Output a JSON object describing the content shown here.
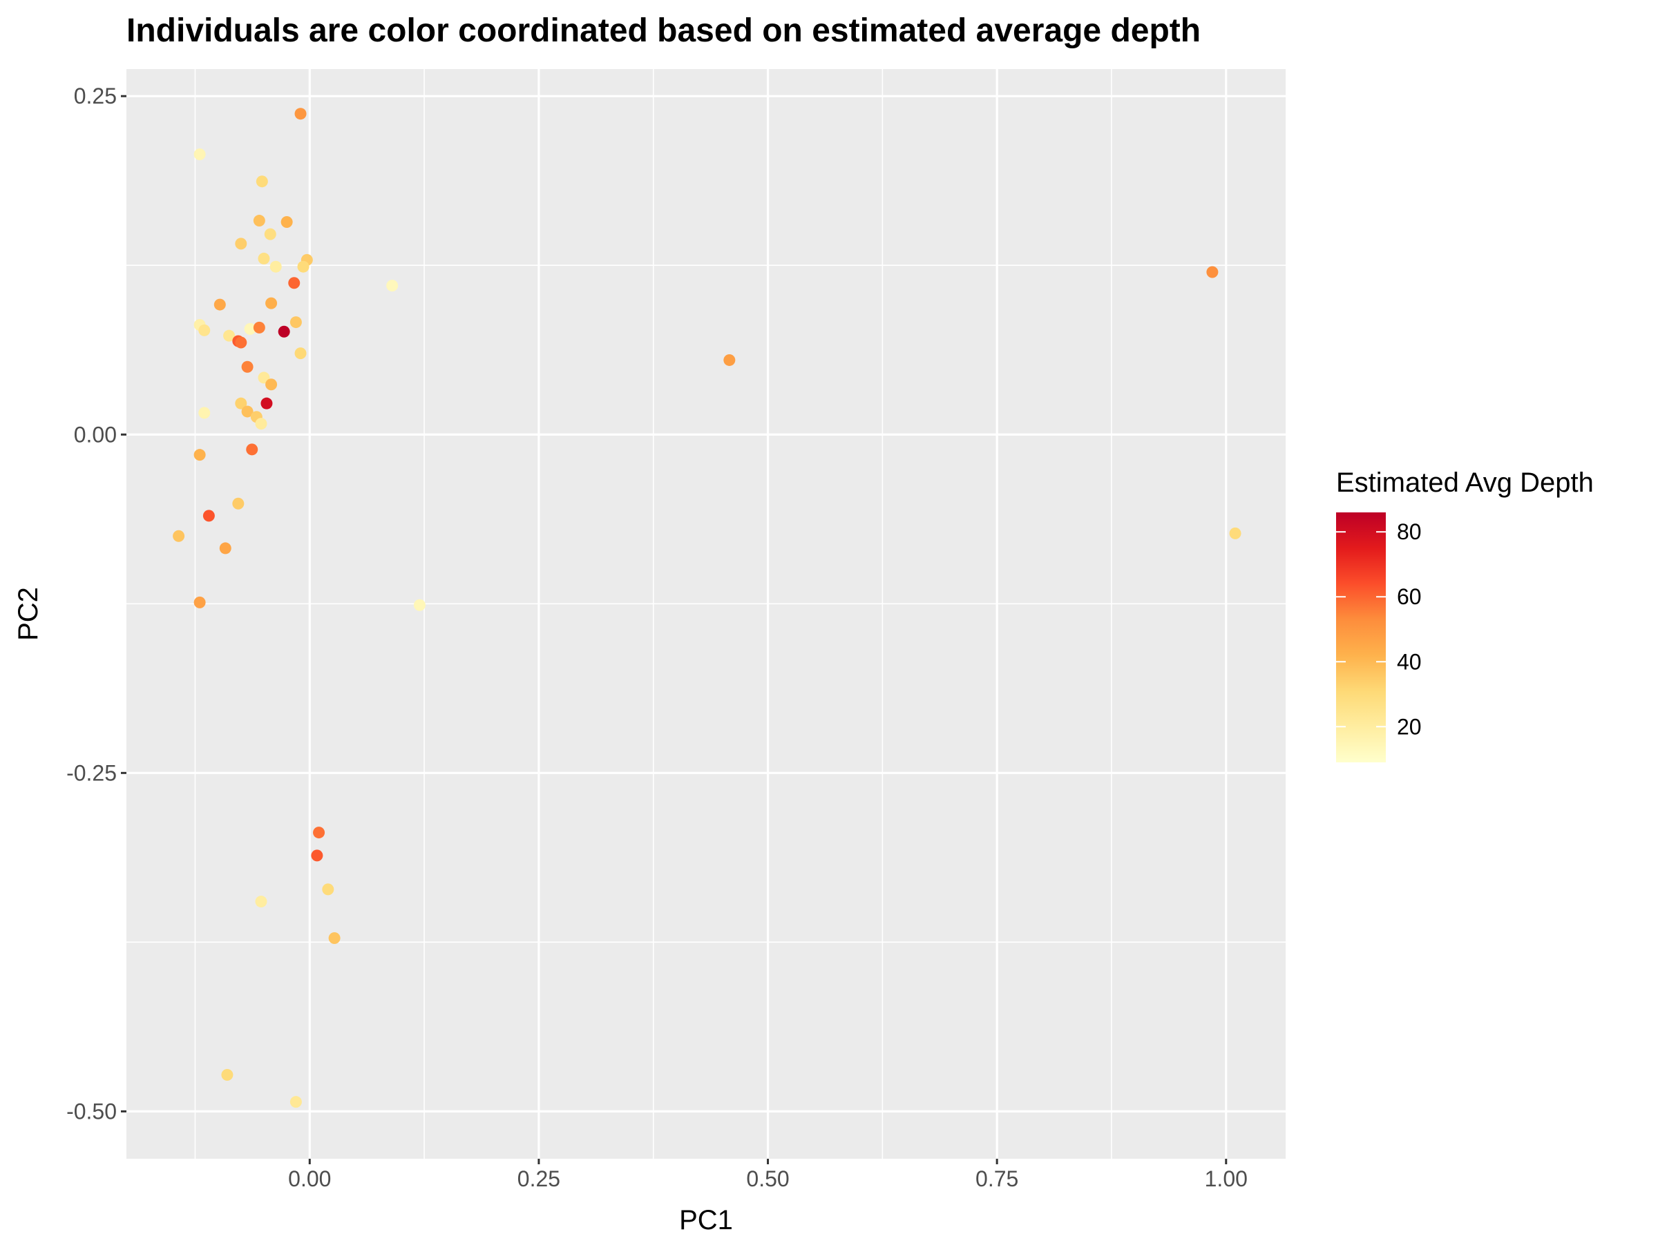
{
  "chart_data": {
    "type": "scatter",
    "title": "Individuals are color coordinated based on estimated average depth",
    "xlabel": "PC1",
    "ylabel": "PC2",
    "xlim": [
      -0.2,
      1.065
    ],
    "ylim": [
      -0.535,
      0.27
    ],
    "x_ticks": [
      0.0,
      0.25,
      0.5,
      0.75,
      1.0
    ],
    "x_tick_labels": [
      "0.00",
      "0.25",
      "0.50",
      "0.75",
      "1.00"
    ],
    "y_ticks": [
      0.25,
      0.0,
      -0.25,
      -0.5
    ],
    "y_tick_labels": [
      "0.25",
      "0.00",
      "-0.25",
      "-0.50"
    ],
    "grid": true,
    "panel_background": "#ebebeb",
    "grid_color": "#ffffff",
    "legend": {
      "title": "Estimated Avg Depth",
      "placement": "right",
      "min": 9,
      "max": 86,
      "ticks": [
        20,
        40,
        60,
        80
      ],
      "tick_labels": [
        "20",
        "40",
        "60",
        "80"
      ],
      "colors": [
        "#ffffcc",
        "#ffeda0",
        "#fed976",
        "#feb24c",
        "#fd8d3c",
        "#fc4e2a",
        "#e31a1c",
        "#bd0026"
      ]
    },
    "points": [
      {
        "x": -0.12,
        "y": 0.207,
        "depth": 15
      },
      {
        "x": -0.01,
        "y": 0.237,
        "depth": 50
      },
      {
        "x": -0.052,
        "y": 0.187,
        "depth": 30
      },
      {
        "x": -0.055,
        "y": 0.158,
        "depth": 38
      },
      {
        "x": -0.025,
        "y": 0.157,
        "depth": 42
      },
      {
        "x": -0.043,
        "y": 0.148,
        "depth": 28
      },
      {
        "x": -0.075,
        "y": 0.141,
        "depth": 34
      },
      {
        "x": -0.05,
        "y": 0.13,
        "depth": 27
      },
      {
        "x": -0.037,
        "y": 0.124,
        "depth": 20
      },
      {
        "x": -0.003,
        "y": 0.129,
        "depth": 35
      },
      {
        "x": -0.007,
        "y": 0.124,
        "depth": 30
      },
      {
        "x": -0.017,
        "y": 0.112,
        "depth": 60
      },
      {
        "x": 0.09,
        "y": 0.11,
        "depth": 13
      },
      {
        "x": -0.098,
        "y": 0.096,
        "depth": 45
      },
      {
        "x": -0.042,
        "y": 0.097,
        "depth": 43
      },
      {
        "x": -0.015,
        "y": 0.083,
        "depth": 36
      },
      {
        "x": -0.12,
        "y": 0.081,
        "depth": 18
      },
      {
        "x": -0.115,
        "y": 0.077,
        "depth": 25
      },
      {
        "x": -0.065,
        "y": 0.078,
        "depth": 14
      },
      {
        "x": -0.055,
        "y": 0.079,
        "depth": 55
      },
      {
        "x": -0.028,
        "y": 0.076,
        "depth": 86
      },
      {
        "x": -0.088,
        "y": 0.073,
        "depth": 24
      },
      {
        "x": -0.078,
        "y": 0.069,
        "depth": 62
      },
      {
        "x": -0.075,
        "y": 0.068,
        "depth": 58
      },
      {
        "x": -0.01,
        "y": 0.06,
        "depth": 31
      },
      {
        "x": 0.458,
        "y": 0.055,
        "depth": 48
      },
      {
        "x": 0.985,
        "y": 0.12,
        "depth": 52
      },
      {
        "x": -0.068,
        "y": 0.05,
        "depth": 55
      },
      {
        "x": -0.05,
        "y": 0.042,
        "depth": 22
      },
      {
        "x": -0.042,
        "y": 0.037,
        "depth": 40
      },
      {
        "x": -0.047,
        "y": 0.023,
        "depth": 80
      },
      {
        "x": -0.075,
        "y": 0.023,
        "depth": 33
      },
      {
        "x": -0.068,
        "y": 0.017,
        "depth": 38
      },
      {
        "x": -0.115,
        "y": 0.016,
        "depth": 16
      },
      {
        "x": -0.058,
        "y": 0.013,
        "depth": 34
      },
      {
        "x": -0.053,
        "y": 0.008,
        "depth": 21
      },
      {
        "x": -0.063,
        "y": -0.011,
        "depth": 58
      },
      {
        "x": -0.12,
        "y": -0.015,
        "depth": 42
      },
      {
        "x": -0.078,
        "y": -0.051,
        "depth": 35
      },
      {
        "x": -0.11,
        "y": -0.06,
        "depth": 63
      },
      {
        "x": -0.143,
        "y": -0.075,
        "depth": 37
      },
      {
        "x": -0.092,
        "y": -0.084,
        "depth": 46
      },
      {
        "x": 1.01,
        "y": -0.073,
        "depth": 30
      },
      {
        "x": -0.12,
        "y": -0.124,
        "depth": 47
      },
      {
        "x": 0.12,
        "y": -0.126,
        "depth": 14
      },
      {
        "x": 0.01,
        "y": -0.294,
        "depth": 58
      },
      {
        "x": 0.008,
        "y": -0.311,
        "depth": 62
      },
      {
        "x": 0.02,
        "y": -0.336,
        "depth": 30
      },
      {
        "x": -0.053,
        "y": -0.345,
        "depth": 20
      },
      {
        "x": 0.027,
        "y": -0.372,
        "depth": 37
      },
      {
        "x": -0.09,
        "y": -0.473,
        "depth": 30
      },
      {
        "x": -0.015,
        "y": -0.493,
        "depth": 23
      }
    ]
  }
}
